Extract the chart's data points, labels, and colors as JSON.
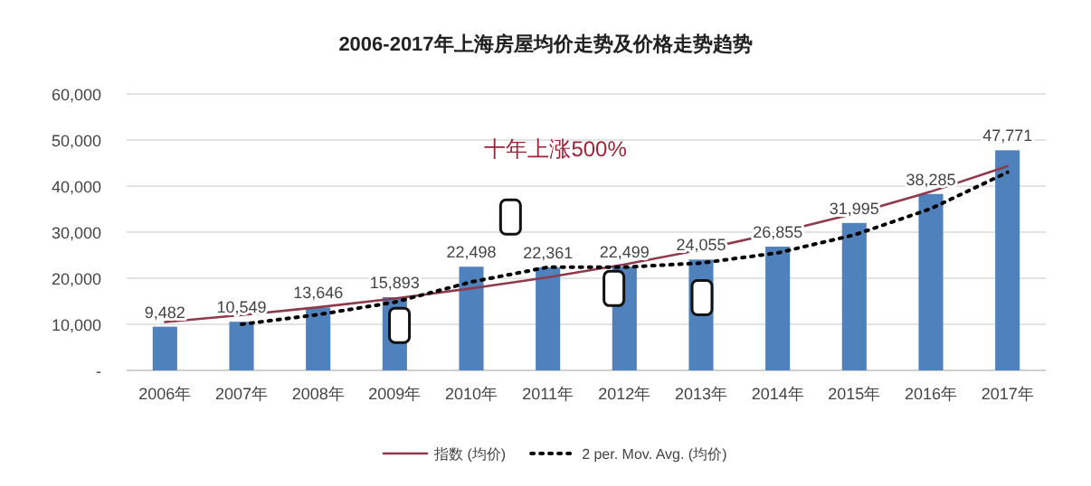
{
  "chart_data": {
    "type": "bar",
    "title": "2006-2017年上海房屋均价走势及价格走势趋势",
    "categories": [
      "2006年",
      "2007年",
      "2008年",
      "2009年",
      "2010年",
      "2011年",
      "2012年",
      "2013年",
      "2014年",
      "2015年",
      "2016年",
      "2017年"
    ],
    "series": [
      {
        "color": "#4f81bd",
        "values": [
          9482,
          10549,
          13646,
          15893,
          22498,
          22361,
          22499,
          24055,
          26855,
          31995,
          38285,
          47771
        ],
        "value_labels": [
          "9,482",
          "10,549",
          "13,646",
          "15,893",
          "22,498",
          "22,361",
          "22,499",
          "24,055",
          "26,855",
          "31,995",
          "38,285",
          "47,771"
        ]
      },
      {
        "name": "指数 (均价)",
        "type": "line",
        "color": "#8e3a4c",
        "line_style": "solid",
        "values": [
          10500,
          12000,
          13700,
          15600,
          17800,
          20200,
          23000,
          26200,
          29900,
          34000,
          38800,
          44300
        ]
      },
      {
        "name": "2 per. Mov. Avg. (均价)",
        "type": "line",
        "color": "#000000",
        "line_style": "dotted",
        "values": [
          null,
          10000,
          12100,
          14800,
          19200,
          22400,
          22400,
          23300,
          25500,
          29400,
          35100,
          43000
        ]
      }
    ],
    "ylim": [
      0,
      60000
    ],
    "yticks": [
      {
        "value": 0,
        "label": "-"
      },
      {
        "value": 10000,
        "label": "10,000"
      },
      {
        "value": 20000,
        "label": "20,000"
      },
      {
        "value": 30000,
        "label": "30,000"
      },
      {
        "value": 40000,
        "label": "40,000"
      },
      {
        "value": 50000,
        "label": "50,000"
      },
      {
        "value": 60000,
        "label": "60,000"
      }
    ],
    "grid": "y",
    "legend": "bottom",
    "annotations": [
      "十年上涨500%"
    ]
  }
}
